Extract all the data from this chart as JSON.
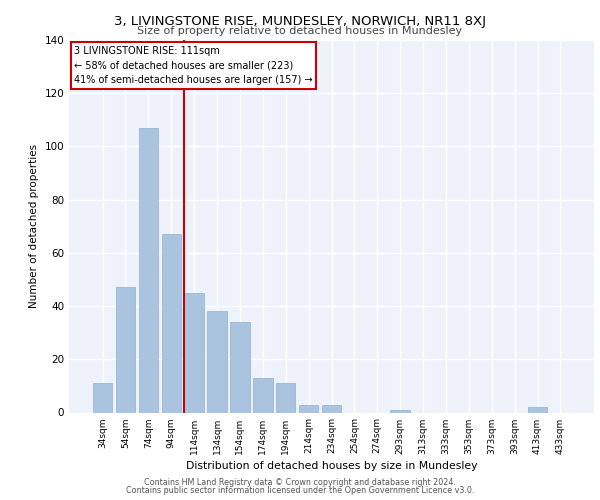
{
  "title": "3, LIVINGSTONE RISE, MUNDESLEY, NORWICH, NR11 8XJ",
  "subtitle": "Size of property relative to detached houses in Mundesley",
  "xlabel": "Distribution of detached houses by size in Mundesley",
  "ylabel": "Number of detached properties",
  "categories": [
    "34sqm",
    "54sqm",
    "74sqm",
    "94sqm",
    "114sqm",
    "134sqm",
    "154sqm",
    "174sqm",
    "194sqm",
    "214sqm",
    "234sqm",
    "254sqm",
    "274sqm",
    "293sqm",
    "313sqm",
    "333sqm",
    "353sqm",
    "373sqm",
    "393sqm",
    "413sqm",
    "433sqm"
  ],
  "values": [
    11,
    47,
    107,
    67,
    45,
    38,
    34,
    13,
    11,
    3,
    3,
    0,
    0,
    1,
    0,
    0,
    0,
    0,
    0,
    2,
    0
  ],
  "bar_color": "#aac4df",
  "bar_edgecolor": "#8ab4d4",
  "marker_idx": 4,
  "marker_color": "#cc0000",
  "annotation_lines": [
    "3 LIVINGSTONE RISE: 111sqm",
    "← 58% of detached houses are smaller (223)",
    "41% of semi-detached houses are larger (157) →"
  ],
  "annotation_box_edgecolor": "#cc0000",
  "ylim": [
    0,
    140
  ],
  "yticks": [
    0,
    20,
    40,
    60,
    80,
    100,
    120,
    140
  ],
  "background_color": "#eef2fa",
  "grid_color": "#ffffff",
  "footer_line1": "Contains HM Land Registry data © Crown copyright and database right 2024.",
  "footer_line2": "Contains public sector information licensed under the Open Government Licence v3.0."
}
